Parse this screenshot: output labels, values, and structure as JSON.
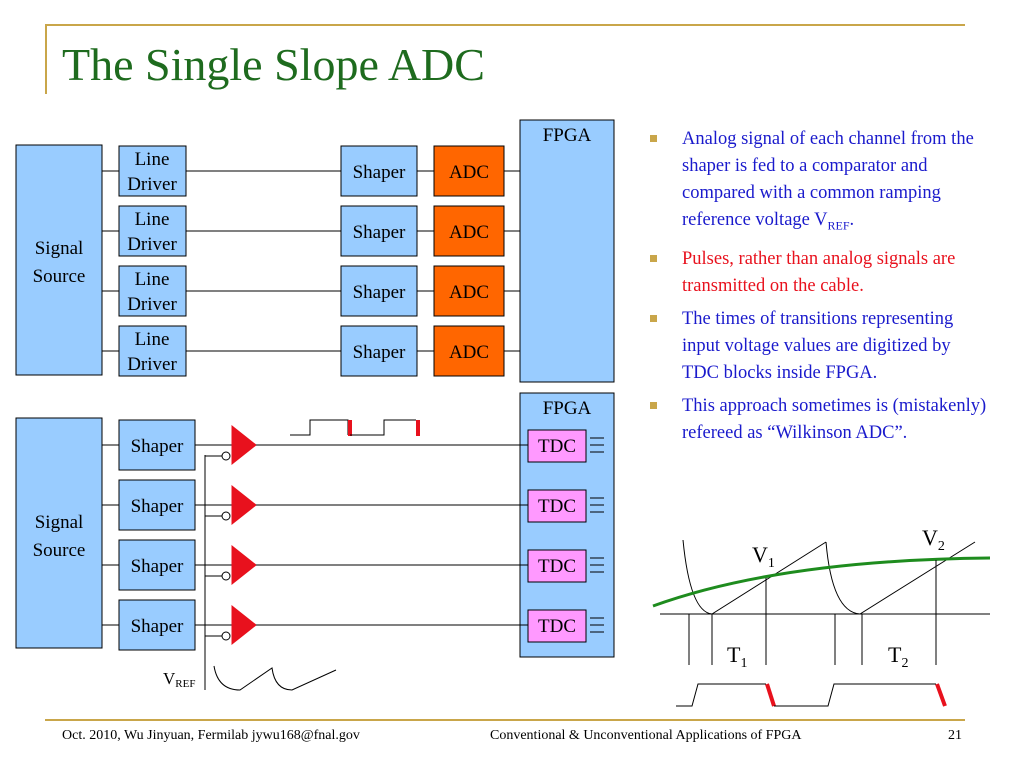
{
  "title": "The Single Slope ADC",
  "diagram_top": {
    "signal_source": "Signal Source",
    "line_driver": "Line Driver",
    "shaper": "Shaper",
    "adc": "ADC",
    "fpga": "FPGA"
  },
  "diagram_bottom": {
    "signal_source": "Signal Source",
    "shaper": "Shaper",
    "tdc": "TDC",
    "fpga": "FPGA",
    "vref": "V",
    "vref_sub": "REF"
  },
  "waveform": {
    "v1": "V",
    "v1_sub": "1",
    "v2": "V",
    "v2_sub": "2",
    "t1": "T",
    "t1_sub": "1",
    "t2": "T",
    "t2_sub": "2"
  },
  "bullets": [
    {
      "text": "Analog signal of each channel from the shaper is fed to a comparator and compared with a common ramping reference voltage  V",
      "sub": "REF",
      "tail": ".",
      "color": "#1a1acc"
    },
    {
      "text": "Pulses, rather than analog signals are transmitted on the cable.",
      "color": "#e8111d"
    },
    {
      "text": "The times of transitions representing input voltage values are digitized by TDC blocks inside FPGA.",
      "color": "#1a1acc"
    },
    {
      "text": "This approach sometimes is (mistakenly) refereed as “Wilkinson ADC”.",
      "color": "#1a1acc"
    }
  ],
  "footer": {
    "left": "Oct. 2010, Wu Jinyuan, Fermilab jywu168@fnal.gov",
    "center": "Conventional & Unconventional Applications of  FPGA",
    "page": "21"
  }
}
